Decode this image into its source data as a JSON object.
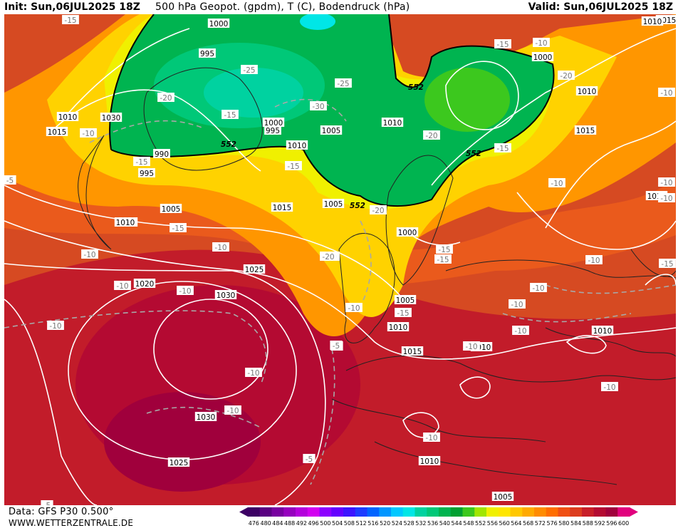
{
  "header": {
    "init": "Init: Sun,06JUL2025 18Z",
    "title": "500 hPa Geopot. (gpdm), T (C), Bodendruck (hPa)",
    "valid": "Valid: Sun,06JUL2025 18Z"
  },
  "footer": {
    "source": "Data: GFS P30 0.500°",
    "website": "WWW.WETTERZENTRALE.DE"
  },
  "legend": {
    "values": [
      "476",
      "480",
      "484",
      "488",
      "492",
      "496",
      "500",
      "504",
      "508",
      "512",
      "516",
      "520",
      "524",
      "528",
      "532",
      "536",
      "540",
      "544",
      "548",
      "552",
      "556",
      "560",
      "564",
      "568",
      "572",
      "576",
      "580",
      "584",
      "588",
      "592",
      "596",
      "600"
    ],
    "colors": [
      "#3c0064",
      "#5a0082",
      "#7800a0",
      "#9600be",
      "#b400dc",
      "#d200f0",
      "#8c00ff",
      "#6400ff",
      "#3c14ff",
      "#1e3cff",
      "#0064ff",
      "#0096ff",
      "#00c8ff",
      "#00e6e6",
      "#00d2a0",
      "#00c878",
      "#00b450",
      "#00a032",
      "#3cc81e",
      "#a0e600",
      "#f0f000",
      "#ffe600",
      "#ffc800",
      "#ffaa00",
      "#ff8c00",
      "#ff6e00",
      "#f05014",
      "#dc3c1e",
      "#c81e28",
      "#b40a32",
      "#a0003c",
      "#e1007d"
    ]
  },
  "pressure_labels": [
    "1000",
    "995",
    "995",
    "1000",
    "990",
    "995",
    "1005",
    "1010",
    "1010",
    "1005",
    "1010",
    "1000",
    "1005",
    "1015",
    "1010",
    "1015",
    "1010",
    "1015",
    "1020",
    "1025",
    "1030",
    "1030",
    "1025",
    "1010",
    "1015",
    "1005",
    "1010",
    "1000",
    "1010",
    "1015",
    "1010",
    "1005",
    "1015",
    "1010",
    "1010",
    "1030"
  ],
  "temperature_labels": [
    "-15",
    "-25",
    "-20",
    "-15",
    "-15",
    "-25",
    "-30",
    "-20",
    "-15",
    "-10",
    "-15",
    "-20",
    "-10",
    "-15",
    "-20",
    "-15",
    "-10",
    "-10",
    "-15",
    "-20",
    "-10",
    "-10",
    "-10",
    "-10",
    "-10",
    "-15",
    "-10",
    "-10",
    "-10",
    "-5",
    "-10",
    "-10",
    "-10",
    "-5",
    "-5",
    "-10",
    "-15",
    "-10",
    "-15",
    "-10",
    "-10",
    "-20",
    "-10",
    "-5",
    "-5",
    "-10",
    "-10"
  ],
  "geopotential_labels": [
    "552",
    "552",
    "552",
    "552"
  ]
}
